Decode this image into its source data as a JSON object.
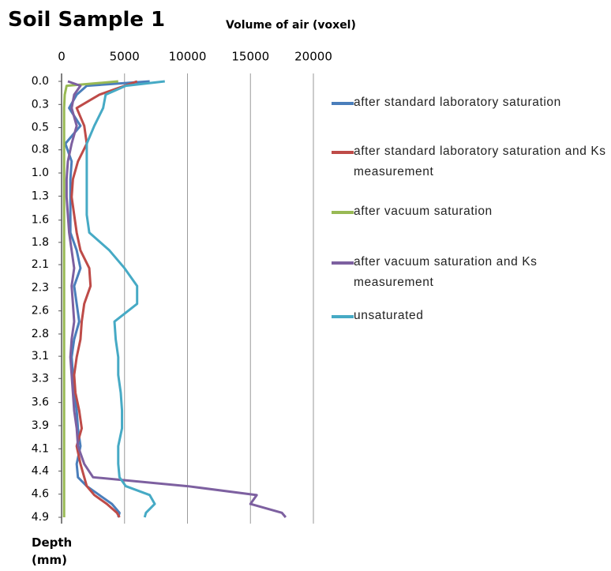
{
  "chart_data": {
    "type": "line",
    "orientation": "horizontal",
    "title": "Soil Sample 1",
    "x_label": "Volume of air (voxel)",
    "y_label": "Depth (mm)",
    "xlim": [
      0,
      20000
    ],
    "xticks": [
      0,
      5000,
      10000,
      15000,
      20000
    ],
    "x_axis_position": "top",
    "ylim": [
      0,
      4.9
    ],
    "y_inverted": true,
    "yticks": [
      {
        "value": 0,
        "label": "0.0"
      },
      {
        "value": 0.26,
        "label": "0.3"
      },
      {
        "value": 0.52,
        "label": "0.5"
      },
      {
        "value": 0.77,
        "label": "0.8"
      },
      {
        "value": 1.03,
        "label": "1.0"
      },
      {
        "value": 1.29,
        "label": "1.3"
      },
      {
        "value": 1.56,
        "label": "1.6"
      },
      {
        "value": 1.81,
        "label": "1.8"
      },
      {
        "value": 2.06,
        "label": "2.1"
      },
      {
        "value": 2.32,
        "label": "2.3"
      },
      {
        "value": 2.58,
        "label": "2.6"
      },
      {
        "value": 2.84,
        "label": "2.8"
      },
      {
        "value": 3.09,
        "label": "3.1"
      },
      {
        "value": 3.34,
        "label": "3.3"
      },
      {
        "value": 3.61,
        "label": "3.6"
      },
      {
        "value": 3.87,
        "label": "3.9"
      },
      {
        "value": 4.13,
        "label": "4.1"
      },
      {
        "value": 4.38,
        "label": "4.4"
      },
      {
        "value": 4.64,
        "label": "4.6"
      },
      {
        "value": 4.9,
        "label": "4.9"
      }
    ],
    "grid": true,
    "legend": "right",
    "y": [
      0,
      0.05,
      0.15,
      0.3,
      0.5,
      0.7,
      0.9,
      1.1,
      1.3,
      1.5,
      1.7,
      1.9,
      2.1,
      2.3,
      2.5,
      2.7,
      2.9,
      3.1,
      3.3,
      3.5,
      3.7,
      3.9,
      4.1,
      4.3,
      4.45,
      4.55,
      4.65,
      4.75,
      4.85,
      4.9
    ],
    "series": [
      {
        "name": "after standard laboratory saturation",
        "color": "#4a7ebb",
        "values": [
          7000,
          2000,
          1200,
          600,
          1500,
          300,
          800,
          700,
          700,
          700,
          700,
          1200,
          1500,
          1000,
          1200,
          1400,
          1000,
          800,
          900,
          1000,
          1200,
          1300,
          1500,
          1200,
          1300,
          2000,
          3000,
          4000,
          4600,
          4500
        ]
      },
      {
        "name": "after standard laboratory saturation and Ks measurement",
        "color": "#be4b48",
        "values": [
          6000,
          5000,
          3000,
          1200,
          1800,
          2000,
          1300,
          900,
          800,
          1000,
          1200,
          1500,
          2200,
          2300,
          1800,
          1600,
          1500,
          1200,
          1000,
          1100,
          1400,
          1600,
          1200,
          1500,
          1800,
          2000,
          2600,
          3600,
          4400,
          4600
        ]
      },
      {
        "name": "after vacuum saturation",
        "color": "#98b954",
        "values": [
          4500,
          400,
          250,
          200,
          200,
          200,
          200,
          200,
          200,
          200,
          200,
          200,
          200,
          200,
          200,
          200,
          200,
          200,
          200,
          200,
          200,
          200,
          200,
          200,
          200,
          200,
          200,
          200,
          200,
          200
        ]
      },
      {
        "name": "after vacuum saturation and Ks measurement",
        "color": "#7d60a0",
        "values": [
          500,
          1500,
          1000,
          800,
          1200,
          800,
          500,
          400,
          400,
          500,
          600,
          800,
          1000,
          800,
          900,
          1000,
          800,
          700,
          800,
          900,
          1000,
          1200,
          1300,
          1800,
          2500,
          10000,
          15500,
          15000,
          17500,
          17800
        ]
      },
      {
        "name": "unsaturated",
        "color": "#46aac5",
        "values": [
          8200,
          5100,
          3500,
          3300,
          2600,
          2000,
          2000,
          2000,
          2000,
          2000,
          2200,
          3800,
          5000,
          6000,
          6000,
          4200,
          4300,
          4500,
          4500,
          4700,
          4800,
          4800,
          4500,
          4500,
          4600,
          5100,
          7000,
          7400,
          6700,
          6600
        ]
      }
    ]
  }
}
